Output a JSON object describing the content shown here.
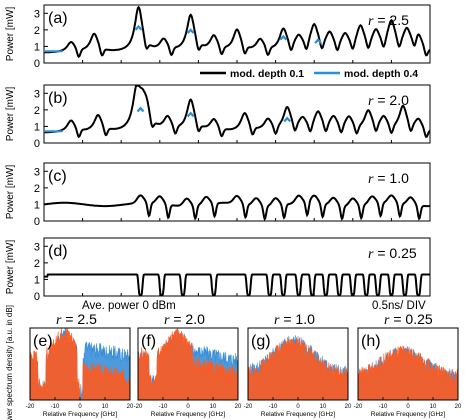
{
  "chart_data": [
    {
      "panel": "(a)",
      "type": "line",
      "ylabel": "Power [mW]",
      "ylim": [
        0,
        3.5
      ],
      "yticks": [
        "0",
        "1",
        "2",
        "3"
      ],
      "annotation": "r = 2.5",
      "r_value": "2.5",
      "legend": [
        "mod. depth  0.1",
        "mod. depth  0.4"
      ],
      "legend_placement": "bottom-right",
      "series": [
        {
          "name": "mod. depth  0.1",
          "color": "#000000",
          "peaks": [
            [
              0.07,
              1.2
            ],
            [
              0.13,
              1.7
            ],
            [
              0.245,
              3.3
            ],
            [
              0.31,
              1.3
            ],
            [
              0.38,
              2.8
            ],
            [
              0.44,
              1.5
            ],
            [
              0.5,
              1.9
            ],
            [
              0.56,
              1.3
            ],
            [
              0.62,
              1.9
            ],
            [
              0.66,
              1.4
            ],
            [
              0.7,
              2.1
            ],
            [
              0.74,
              1.6
            ],
            [
              0.78,
              1.5
            ],
            [
              0.82,
              2.0
            ],
            [
              0.86,
              1.7
            ],
            [
              0.9,
              2.3
            ],
            [
              0.94,
              1.8
            ],
            [
              0.97,
              1.5
            ]
          ]
        },
        {
          "name": "mod. depth  0.4",
          "color": "#2a8fd6",
          "peaks": [
            [
              0.245,
              2.2
            ],
            [
              0.38,
              2.0
            ],
            [
              0.62,
              1.6
            ],
            [
              0.71,
              1.4
            ]
          ]
        }
      ]
    },
    {
      "panel": "(b)",
      "type": "line",
      "ylabel": "Power [mW]",
      "ylim": [
        0,
        3.5
      ],
      "yticks": [
        "0",
        "1",
        "2",
        "3"
      ],
      "annotation": "r = 2.0",
      "r_value": "2.0",
      "series": [
        {
          "name": "mod. depth  0.1",
          "color": "#000000",
          "peaks": [
            [
              0.07,
              1.3
            ],
            [
              0.14,
              1.6
            ],
            [
              0.24,
              2.9
            ],
            [
              0.26,
              2.9
            ],
            [
              0.32,
              1.4
            ],
            [
              0.38,
              2.5
            ],
            [
              0.44,
              1.3
            ],
            [
              0.52,
              1.7
            ],
            [
              0.58,
              1.3
            ],
            [
              0.63,
              2.0
            ],
            [
              0.67,
              1.3
            ],
            [
              0.71,
              1.7
            ],
            [
              0.75,
              1.4
            ],
            [
              0.79,
              1.4
            ],
            [
              0.84,
              1.8
            ],
            [
              0.88,
              1.4
            ],
            [
              0.93,
              2.1
            ],
            [
              0.97,
              1.3
            ]
          ]
        },
        {
          "name": "mod. depth  0.4",
          "color": "#2a8fd6",
          "peaks": [
            [
              0.25,
              2.1
            ],
            [
              0.38,
              1.8
            ],
            [
              0.63,
              1.5
            ]
          ]
        }
      ]
    },
    {
      "panel": "(c)",
      "type": "line",
      "ylabel": "Power [mW]",
      "ylim": [
        0,
        3.5
      ],
      "yticks": [
        "0",
        "1",
        "2",
        "3"
      ],
      "annotation": "r = 1.0",
      "r_value": "1.0",
      "series": [
        {
          "name": "mod. depth  0.1",
          "color": "#000000",
          "baseline": 1.0
        }
      ]
    },
    {
      "panel": "(d)",
      "type": "line",
      "ylabel": "Power [mW]",
      "ylim": [
        0,
        3.5
      ],
      "yticks": [
        "0",
        "1",
        "2",
        "3"
      ],
      "annotation": "r = 0.25",
      "r_value": "0.25",
      "series": [
        {
          "name": "mod. depth  0.1",
          "color": "#000000",
          "baseline": 1.3,
          "dips": [
            0.25,
            0.305,
            0.36,
            0.44,
            0.53,
            0.585,
            0.62,
            0.66,
            0.695,
            0.73,
            0.765,
            0.8,
            0.835,
            0.865,
            0.9,
            0.935,
            0.97
          ]
        }
      ]
    },
    {
      "panel": "(e)",
      "type": "area",
      "title": "r = 2.5",
      "ylabel": "Power spectrum density [a.u. in dB]",
      "xlabel": "Relative Frequency [GHz]",
      "xlim": [
        -20,
        20
      ],
      "xticks": [
        "-20",
        "-10",
        "0",
        "10",
        "20"
      ]
    },
    {
      "panel": "(f)",
      "type": "area",
      "title": "r = 2.0",
      "xlabel": "Relative Frequency [GHz]",
      "xlim": [
        -20,
        20
      ],
      "xticks": [
        "-20",
        "-10",
        "0",
        "10",
        "20"
      ]
    },
    {
      "panel": "(g)",
      "type": "area",
      "title": "r = 1.0",
      "xlabel": "Relative Frequency [GHz]",
      "xlim": [
        -20,
        20
      ],
      "xticks": [
        "-20",
        "-10",
        "0",
        "10",
        "20"
      ]
    },
    {
      "panel": "(h)",
      "type": "area",
      "title": "r = 0.25",
      "xlabel": "Relative Frequency [GHz]",
      "xlim": [
        -20,
        20
      ],
      "xticks": [
        "-20",
        "-10",
        "0",
        "10",
        "20"
      ]
    }
  ],
  "time_labels": {
    "avg_power": "Ave. power 0 dBm",
    "time_div": "0.5ns/ DIV"
  },
  "colors": {
    "black_trace": "#000000",
    "blue_trace": "#2a8fd6",
    "spectrum_orange": "#ff5a1f",
    "spectrum_blue": "#3a8fd8"
  }
}
